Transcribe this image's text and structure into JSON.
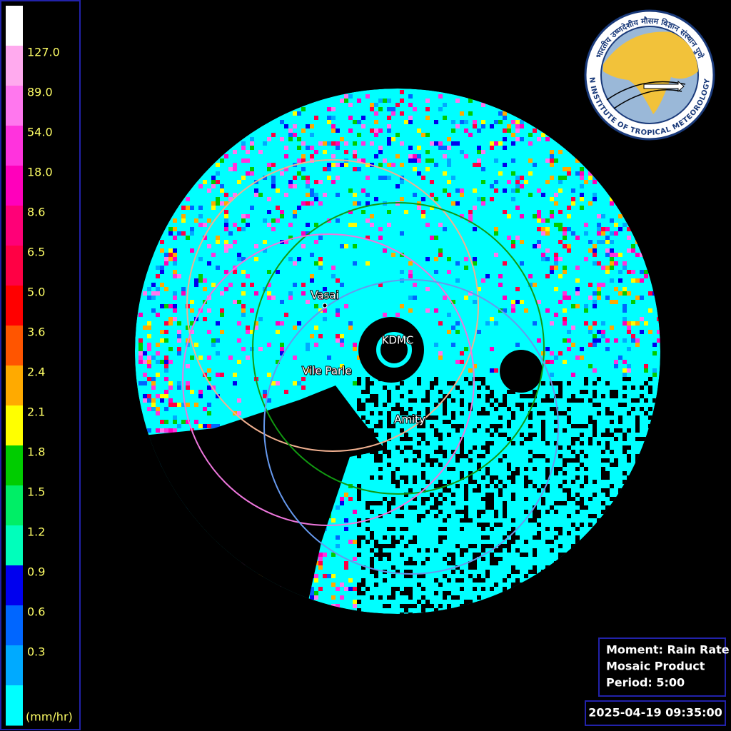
{
  "legend": {
    "colors": [
      "#ffffff",
      "#ffaaee",
      "#ff77ee",
      "#ff33dd",
      "#ff00bb",
      "#ff0077",
      "#ff0044",
      "#ff0000",
      "#ff5500",
      "#ffaa00",
      "#ffff00",
      "#00cc00",
      "#00ee66",
      "#00ffbb",
      "#0000ee",
      "#0066ff",
      "#00aaff",
      "#00ffff"
    ],
    "labels": [
      "127.0",
      "89.0",
      "54.0",
      "18.0",
      "8.6",
      "6.5",
      "5.0",
      "3.6",
      "2.4",
      "2.1",
      "1.8",
      "1.5",
      "1.2",
      "0.9",
      "0.6",
      "0.3"
    ],
    "unit": "(mm/hr)"
  },
  "sites": [
    {
      "label": "Vasai"
    },
    {
      "label": "KDMC"
    },
    {
      "label": "Vile Parle"
    },
    {
      "label": "Amity"
    }
  ],
  "logo": {
    "english": "INDIAN INSTITUTE OF TROPICAL METEOROLOGY PUNE",
    "hindi": "भारतीय उष्णदेशीय मौसम विज्ञान संस्थान पुणे"
  },
  "info": {
    "lines": [
      "Moment: Rain Rate",
      "Mosaic Product",
      "Period: 5:00"
    ],
    "timestamp": "2025-04-19 09:35:00"
  }
}
